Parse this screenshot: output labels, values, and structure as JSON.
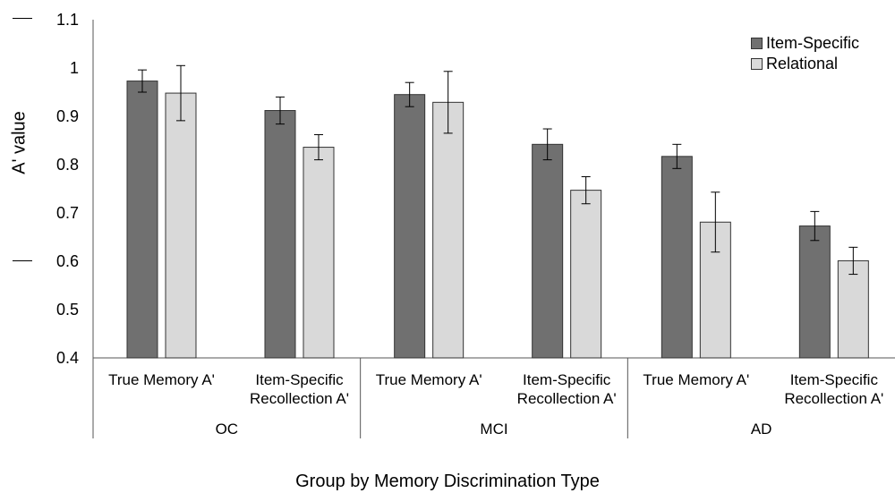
{
  "chart_data": {
    "type": "bar",
    "title": "",
    "ylabel": "A' value",
    "xlabel": "Group by Memory Discrimination Type",
    "ylim": [
      0.4,
      1.1
    ],
    "yticks": [
      "0.4",
      "0.5",
      "0.6",
      "0.7",
      "0.8",
      "0.9",
      "1",
      "1.1"
    ],
    "legend_position": "top-right",
    "groups": [
      {
        "name": "OC",
        "categories": [
          "True Memory A'",
          "Item-Specific\nRecollection A'"
        ]
      },
      {
        "name": "MCI",
        "categories": [
          "True Memory A'",
          "Item-Specific\nRecollection A'"
        ]
      },
      {
        "name": "AD",
        "categories": [
          "True Memory A'",
          "Item-Specific\nRecollection A'"
        ]
      }
    ],
    "series": [
      {
        "name": "Item-Specific",
        "color": "#707070",
        "values": [
          0.973,
          0.912,
          0.945,
          0.842,
          0.817,
          0.673
        ],
        "errors": [
          0.023,
          0.028,
          0.025,
          0.032,
          0.025,
          0.03
        ]
      },
      {
        "name": "Relational",
        "color": "#d9d9d9",
        "values": [
          0.948,
          0.836,
          0.929,
          0.747,
          0.681,
          0.601
        ],
        "errors": [
          0.057,
          0.026,
          0.064,
          0.028,
          0.062,
          0.028
        ]
      }
    ]
  }
}
